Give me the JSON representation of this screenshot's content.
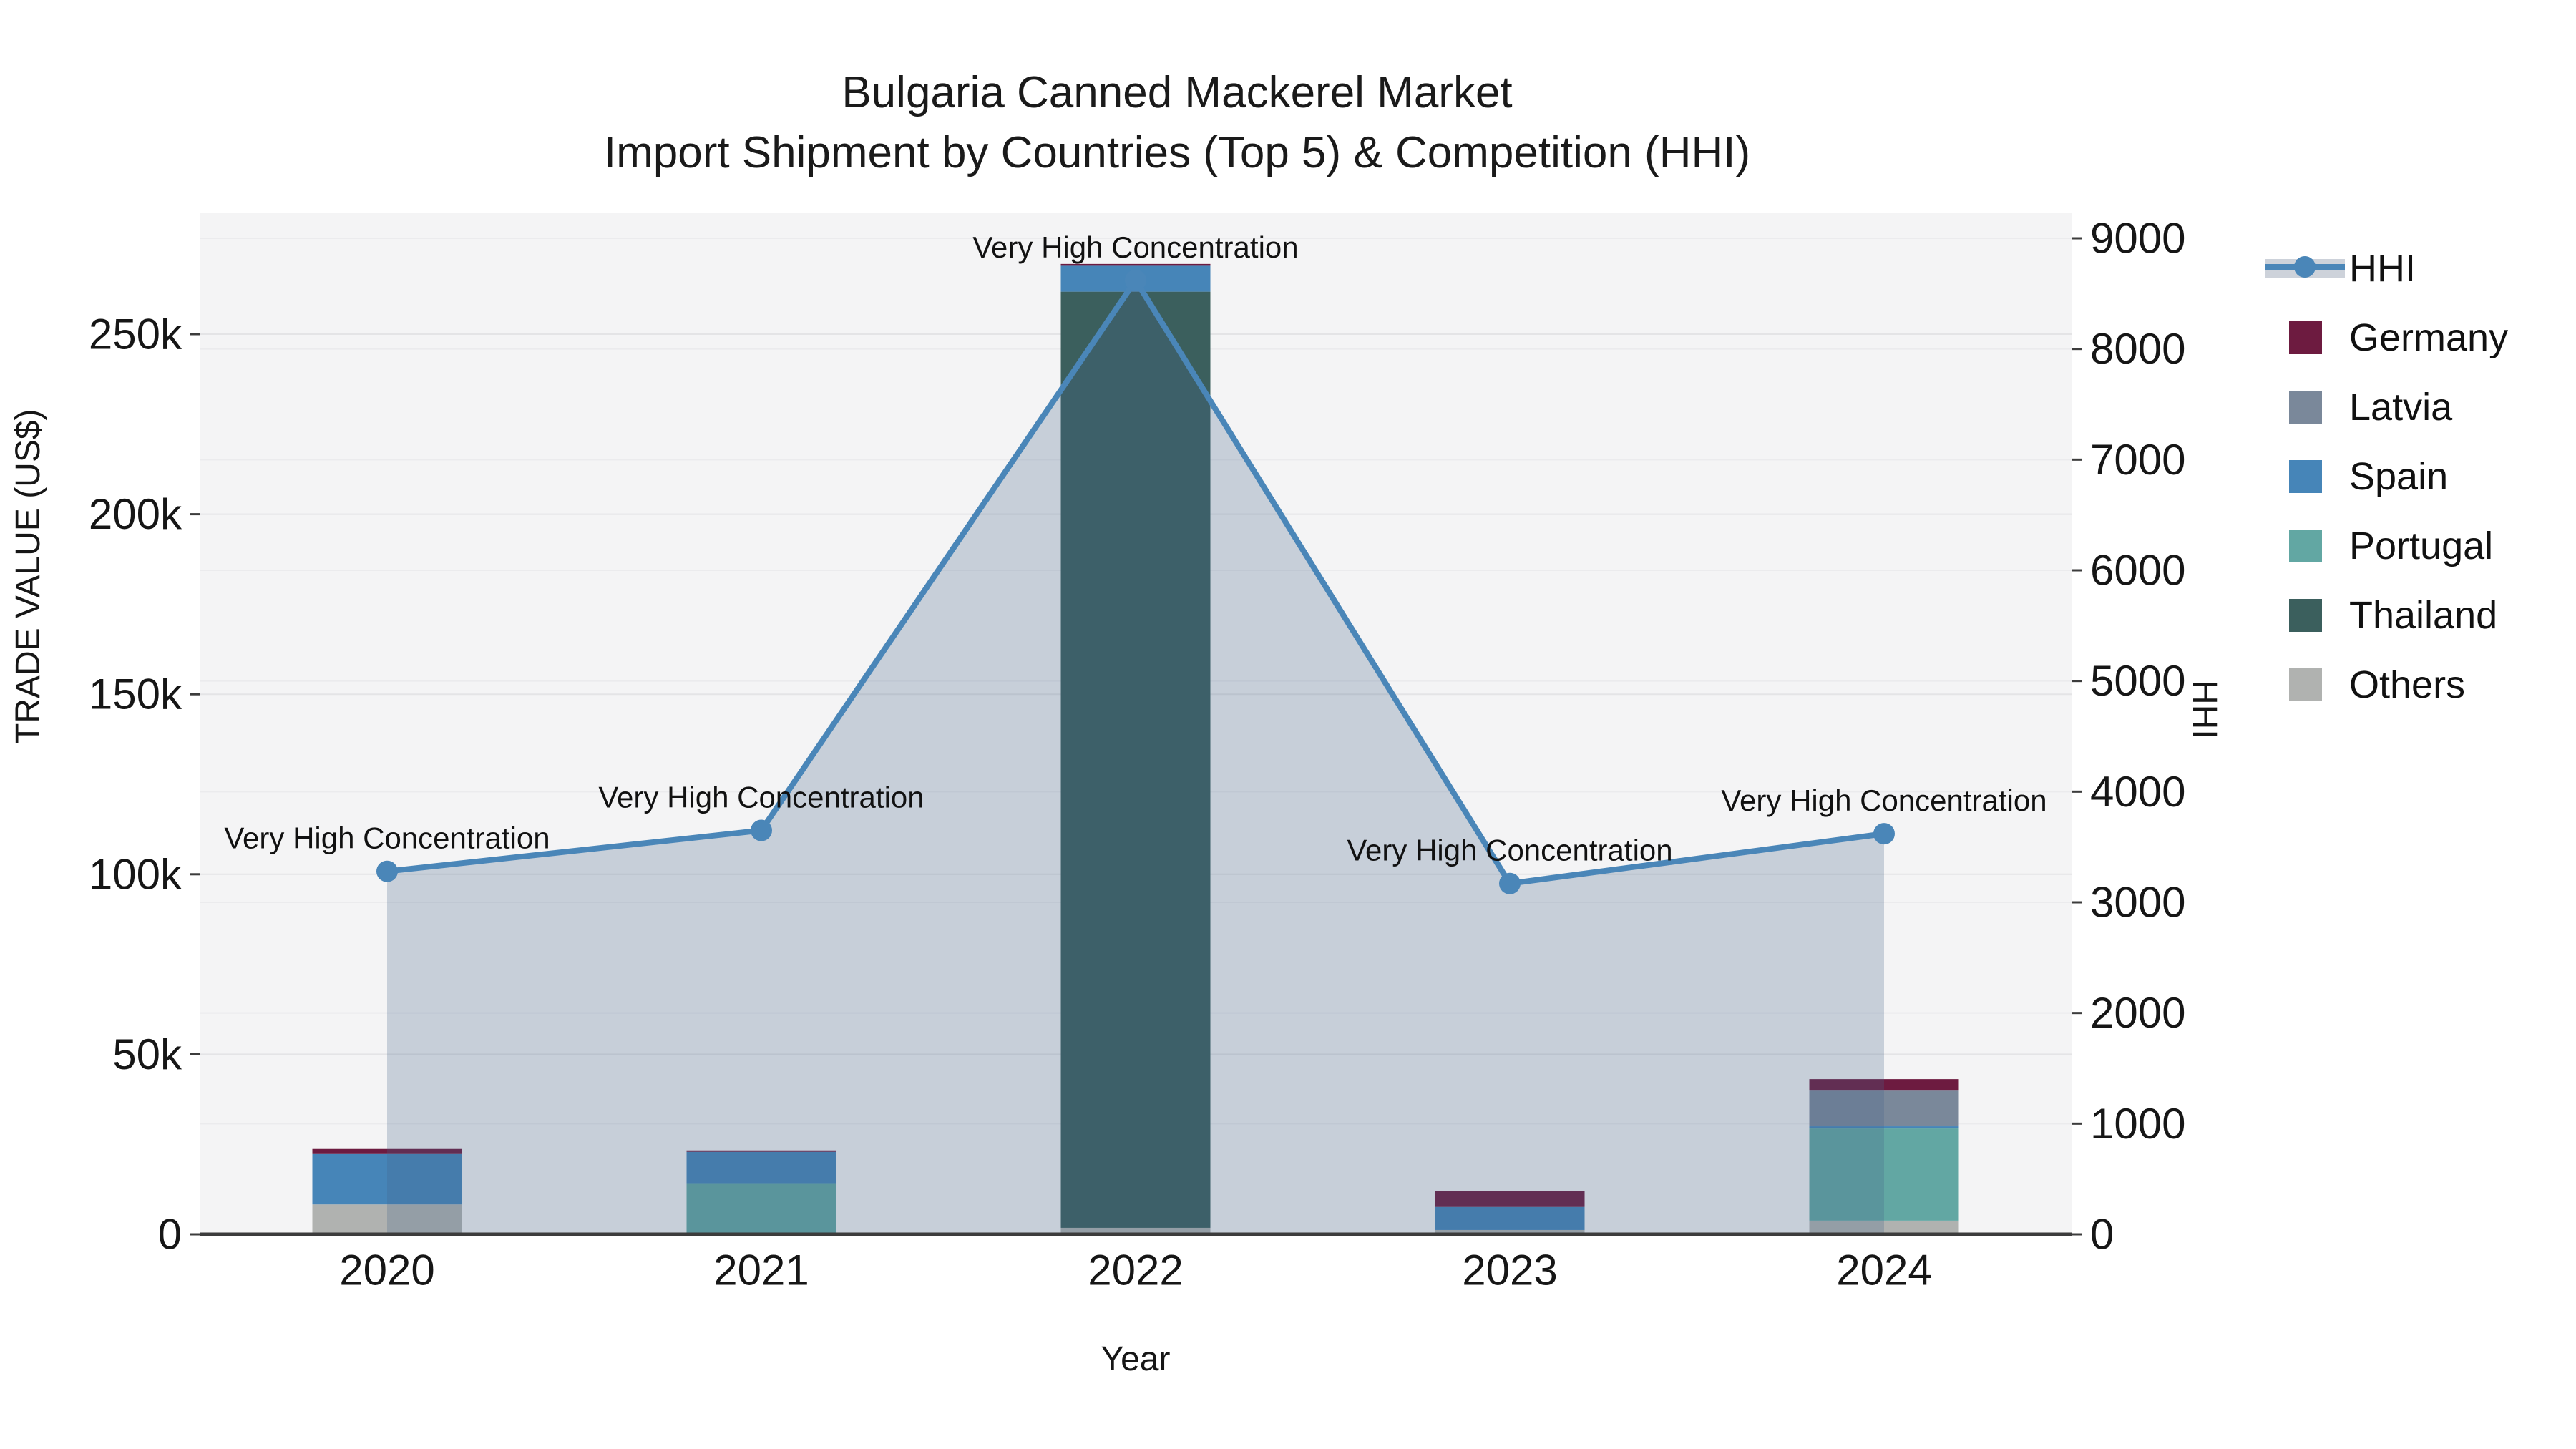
{
  "title": {
    "line1": "Bulgaria Canned Mackerel Market",
    "line2": "Import Shipment by Countries (Top 5) & Competition (HHI)"
  },
  "legend": {
    "items": [
      {
        "label": "HHI",
        "color": "#4a86b8",
        "type": "line"
      },
      {
        "label": "Germany",
        "color": "#6d1b40",
        "type": "patch"
      },
      {
        "label": "Latvia",
        "color": "#7a889a",
        "type": "patch"
      },
      {
        "label": "Spain",
        "color": "#4685b8",
        "type": "patch"
      },
      {
        "label": "Portugal",
        "color": "#62a7a3",
        "type": "patch"
      },
      {
        "label": "Thailand",
        "color": "#3b5f5d",
        "type": "patch"
      },
      {
        "label": "Others",
        "color": "#b0b2b0",
        "type": "patch"
      }
    ]
  },
  "chart_data": {
    "type": "bar+line",
    "title": "Bulgaria Canned Mackerel Market — Import Shipment by Countries (Top 5) & Competition (HHI)",
    "categories": [
      "2020",
      "2021",
      "2022",
      "2023",
      "2024"
    ],
    "stack_order": "bottom_to_top",
    "bar_series": [
      {
        "name": "Others",
        "color": "#b0b2b0",
        "values": [
          8300,
          0,
          1800,
          1200,
          3800
        ]
      },
      {
        "name": "Thailand",
        "color": "#3b5f5d",
        "values": [
          0,
          0,
          260000,
          0,
          0
        ]
      },
      {
        "name": "Portugal",
        "color": "#62a7a3",
        "values": [
          0,
          14200,
          0,
          0,
          25600
        ]
      },
      {
        "name": "Spain",
        "color": "#4685b8",
        "values": [
          14000,
          8700,
          7200,
          6400,
          600
        ]
      },
      {
        "name": "Latvia",
        "color": "#7a889a",
        "values": [
          0,
          0,
          0,
          0,
          10100
        ]
      },
      {
        "name": "Germany",
        "color": "#6d1b40",
        "values": [
          1400,
          400,
          500,
          4400,
          3000
        ]
      }
    ],
    "line_series": {
      "name": "HHI",
      "color": "#4a86b8",
      "area_fill": "rgba(70, 100, 140, 0.26)",
      "values": [
        3280,
        3650,
        8620,
        3170,
        3620
      ]
    },
    "annotations": [
      "Very High Concentration",
      "Very High Concentration",
      "Very High Concentration",
      "Very High Concentration",
      "Very High Concentration"
    ],
    "axes": {
      "x": {
        "label": "Year"
      },
      "left": {
        "label": "TRADE VALUE (US$)",
        "tick_labels": [
          "0",
          "50k",
          "100k",
          "150k",
          "200k",
          "250k"
        ],
        "tick_values": [
          0,
          50000,
          100000,
          150000,
          200000,
          250000
        ],
        "range": [
          0,
          284000
        ]
      },
      "right": {
        "label": "HHI",
        "tick_labels": [
          "0",
          "1000",
          "2000",
          "3000",
          "4000",
          "5000",
          "6000",
          "7000",
          "8000",
          "9000"
        ],
        "tick_values": [
          0,
          1000,
          2000,
          3000,
          4000,
          5000,
          6000,
          7000,
          8000,
          9000
        ],
        "range": [
          0,
          9245
        ]
      }
    },
    "grid": true,
    "legend_position": "right"
  }
}
